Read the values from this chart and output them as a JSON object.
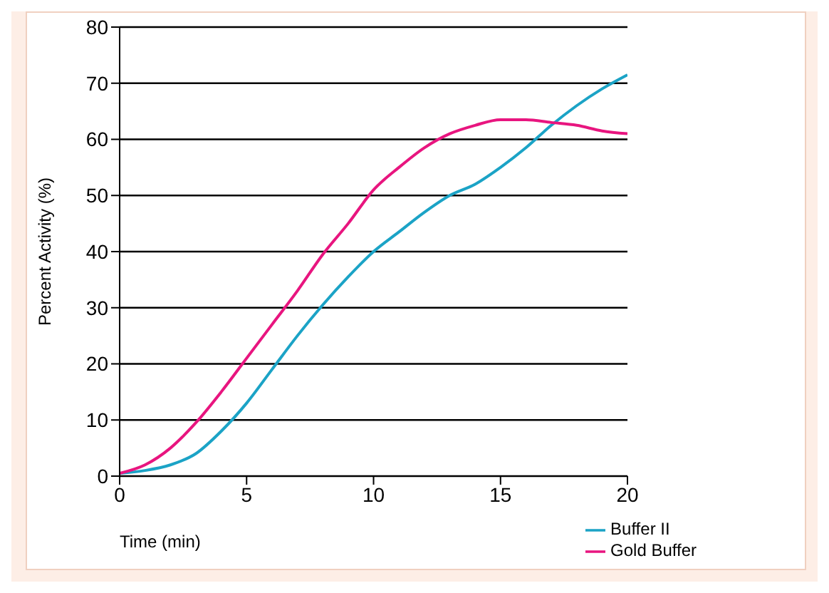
{
  "chart_data": {
    "type": "line",
    "xlabel": "Time (min)",
    "ylabel": "Percent Activity (%)",
    "x": [
      0,
      1,
      2,
      3,
      4,
      5,
      6,
      7,
      8,
      9,
      10,
      11,
      12,
      13,
      14,
      15,
      16,
      17,
      18,
      19,
      20
    ],
    "series": [
      {
        "name": "Buffer II",
        "color": "#1ba3c6",
        "values": [
          0.5,
          1,
          2,
          4,
          8,
          13,
          19,
          25,
          30.5,
          35.5,
          40,
          43.5,
          47,
          50,
          52,
          55,
          58.5,
          62.5,
          66,
          69,
          71.5
        ]
      },
      {
        "name": "Gold Buffer",
        "color": "#e8157f",
        "values": [
          0.5,
          2,
          5,
          9.5,
          15,
          21,
          27,
          33,
          39.5,
          45,
          51,
          55,
          58.5,
          61,
          62.5,
          63.5,
          63.5,
          63,
          62.5,
          61.5,
          61
        ]
      }
    ],
    "xlim": [
      0,
      20
    ],
    "xticks": [
      0,
      5,
      10,
      15,
      20
    ],
    "ylim": [
      0,
      80
    ],
    "yticks": [
      0,
      10,
      20,
      30,
      40,
      50,
      60,
      70,
      80
    ],
    "grid": "y",
    "legend": "bottom right",
    "marker": "none",
    "line_style": "solid"
  }
}
